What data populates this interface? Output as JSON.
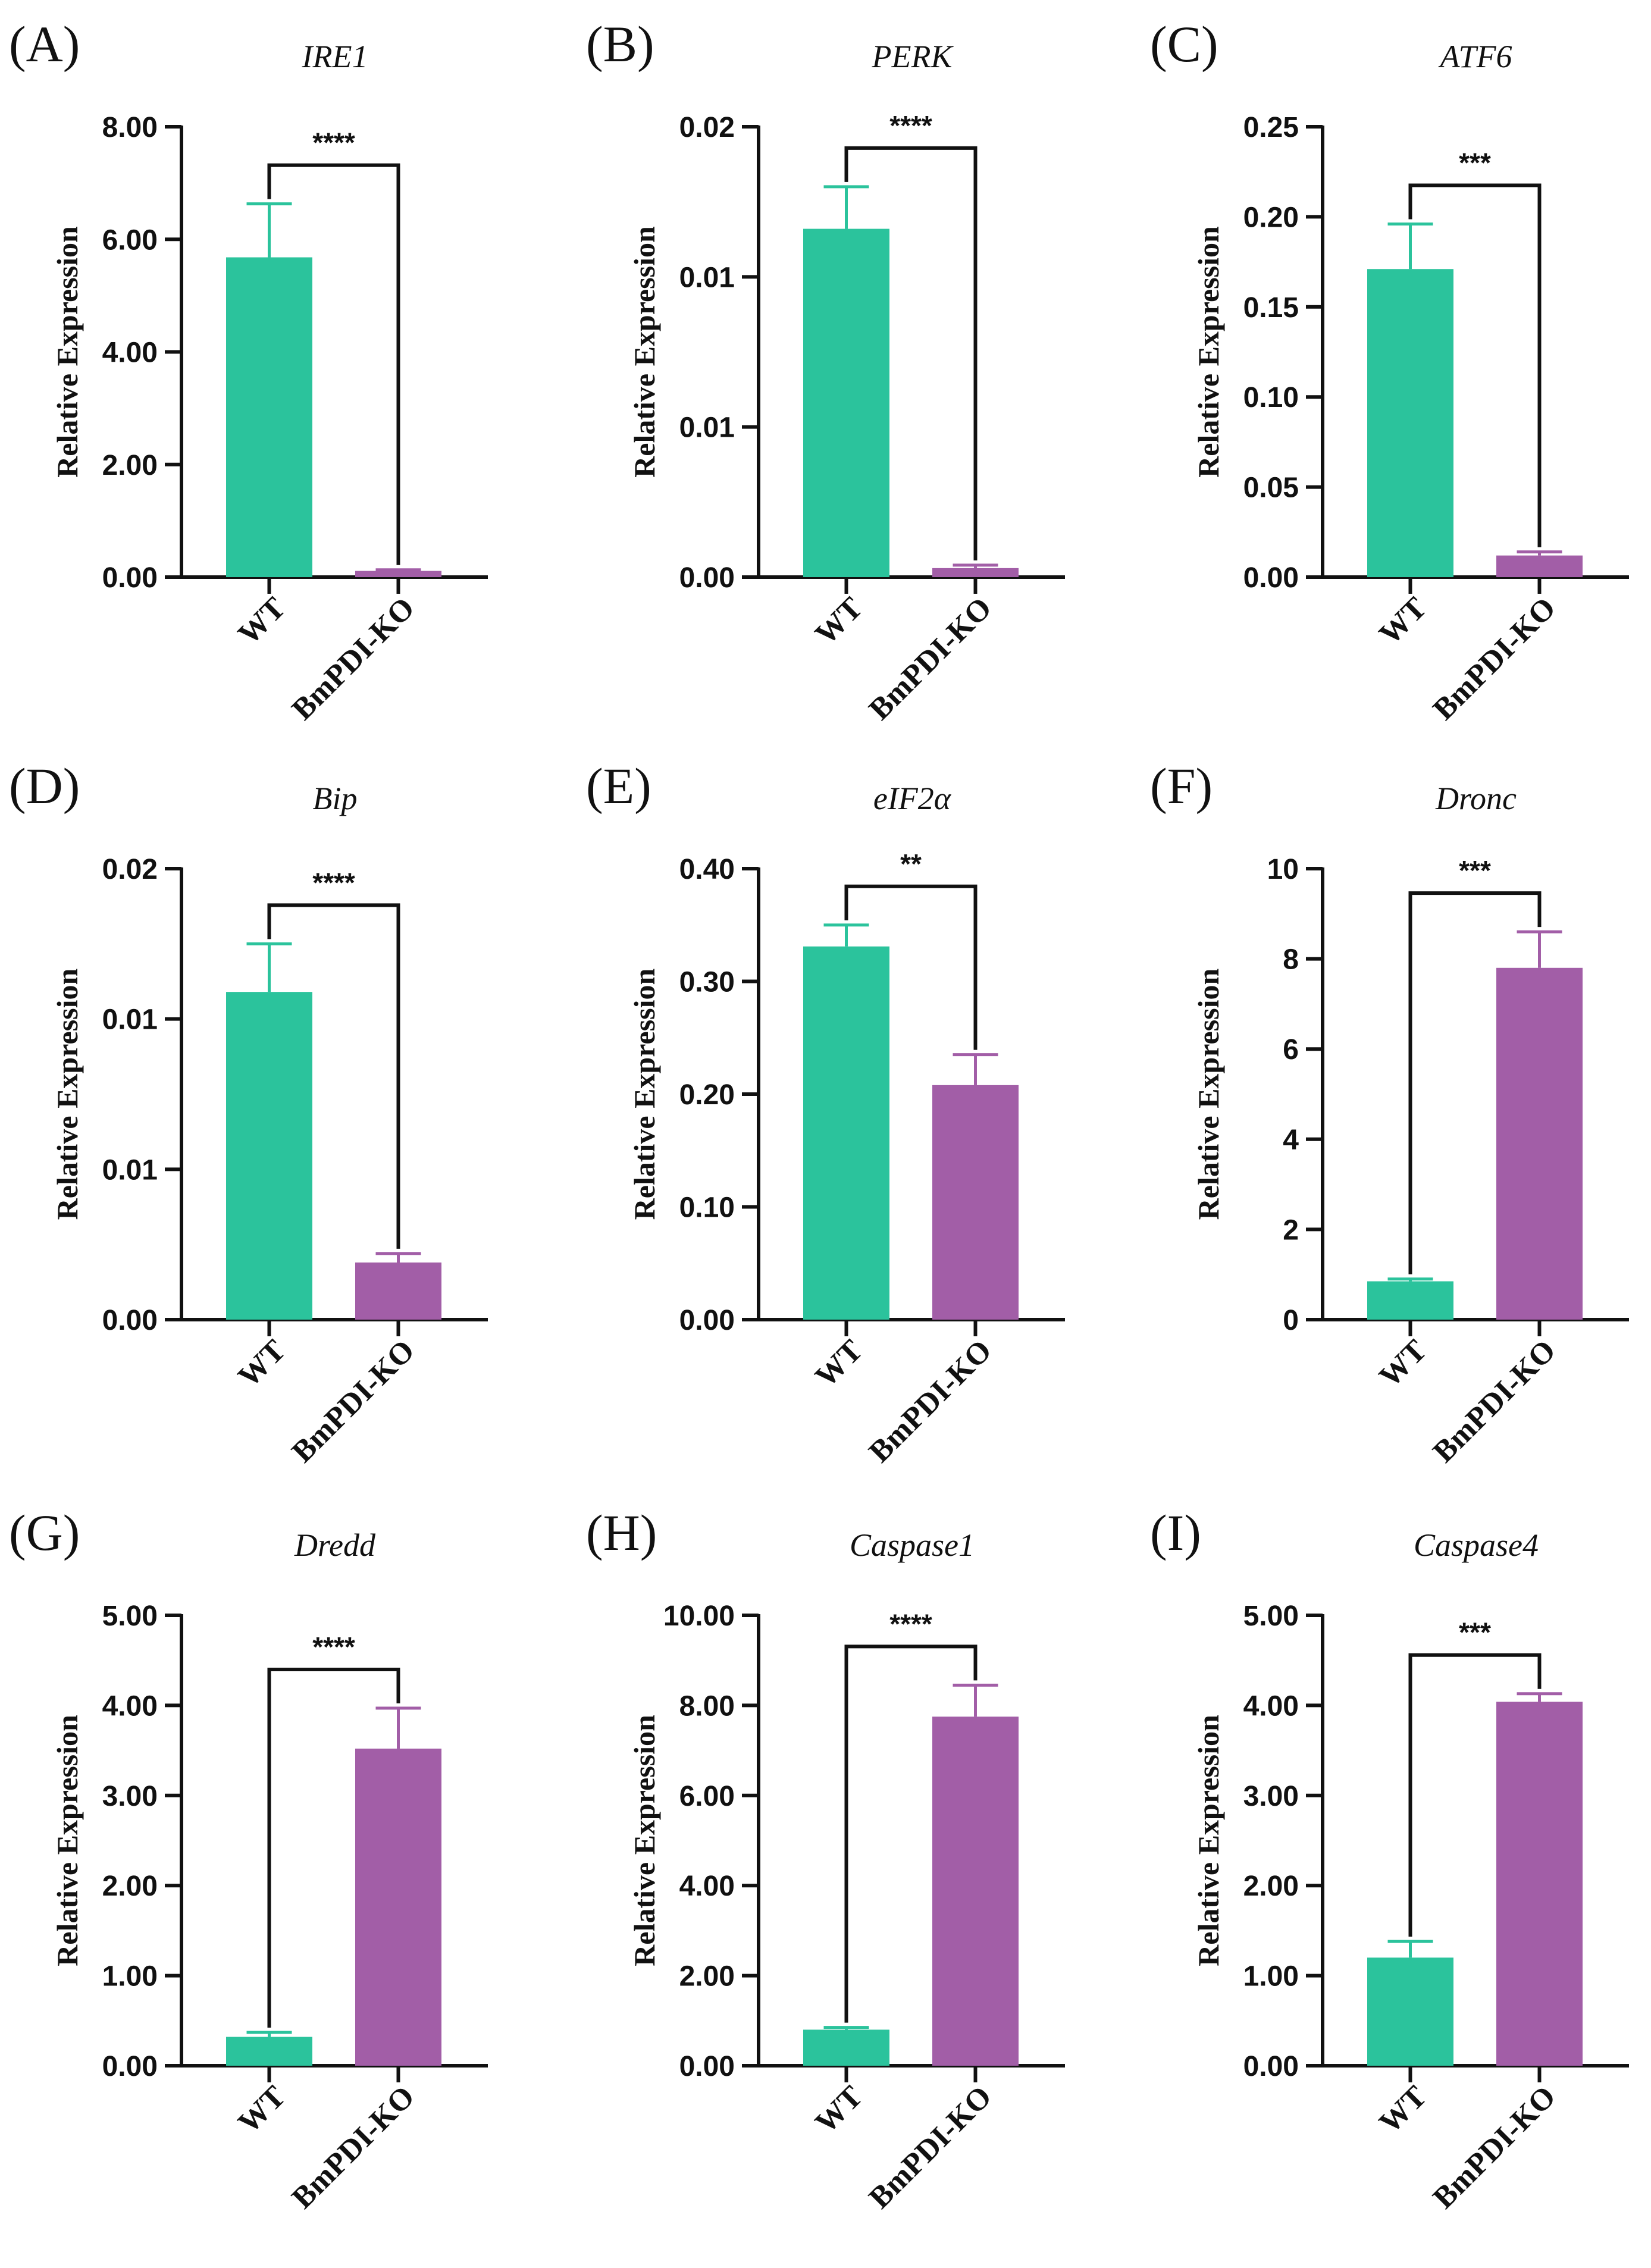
{
  "figure": {
    "colors": {
      "wt": "#2bc39c",
      "ko": "#a25ea7",
      "axis": "#111111",
      "text": "#111111"
    },
    "ylabel": "Relative Expression"
  },
  "chart_data": [
    {
      "panel": "(A)",
      "title": "IRE1",
      "type": "bar",
      "categories": [
        "WT",
        "BmPDI-KO"
      ],
      "values": [
        5.68,
        0.11
      ],
      "errors": [
        0.95,
        0.02
      ],
      "ylim": [
        0,
        8
      ],
      "yticks": [
        "0.00",
        "2.00",
        "4.00",
        "6.00",
        "8.00"
      ],
      "significance": "****",
      "ylabel": "Relative Expression"
    },
    {
      "panel": "(B)",
      "title": "PERK",
      "type": "bar",
      "categories": [
        "WT",
        "BmPDI-KO"
      ],
      "values": [
        0.0116,
        0.0003
      ],
      "errors": [
        0.0014,
        0.0001
      ],
      "ylim": [
        0,
        0.015
      ],
      "yticks": [
        "0.00",
        "0.01",
        "0.01",
        "0.02"
      ],
      "significance": "****",
      "ylabel": "Relative Expression"
    },
    {
      "panel": "(C)",
      "title": "ATF6",
      "type": "bar",
      "categories": [
        "WT",
        "BmPDI-KO"
      ],
      "values": [
        0.171,
        0.012
      ],
      "errors": [
        0.025,
        0.002
      ],
      "ylim": [
        0,
        0.25
      ],
      "yticks": [
        "0.00",
        "0.05",
        "0.10",
        "0.15",
        "0.20",
        "0.25"
      ],
      "significance": "***",
      "ylabel": "Relative Expression"
    },
    {
      "panel": "(D)",
      "title": "Bip",
      "type": "bar",
      "categories": [
        "WT",
        "BmPDI-KO"
      ],
      "values": [
        0.0109,
        0.0019
      ],
      "errors": [
        0.0016,
        0.0003
      ],
      "ylim": [
        0,
        0.015
      ],
      "yticks": [
        "0.00",
        "0.01",
        "0.01",
        "0.02"
      ],
      "significance": "****",
      "ylabel": "Relative Expression"
    },
    {
      "panel": "(E)",
      "title": "eIF2α",
      "type": "bar",
      "categories": [
        "WT",
        "BmPDI-KO"
      ],
      "values": [
        0.331,
        0.208
      ],
      "errors": [
        0.019,
        0.027
      ],
      "ylim": [
        0,
        0.4
      ],
      "yticks": [
        "0.00",
        "0.10",
        "0.20",
        "0.30",
        "0.40"
      ],
      "significance": "**",
      "ylabel": "Relative Expression"
    },
    {
      "panel": "(F)",
      "title": "Dronc",
      "type": "bar",
      "categories": [
        "WT",
        "BmPDI-KO"
      ],
      "values": [
        0.85,
        7.8
      ],
      "errors": [
        0.05,
        0.8
      ],
      "ylim": [
        0,
        10
      ],
      "yticks": [
        "0",
        "2",
        "4",
        "6",
        "8",
        "10"
      ],
      "significance": "***",
      "ylabel": "Relative Expression"
    },
    {
      "panel": "(G)",
      "title": "Dredd",
      "type": "bar",
      "categories": [
        "WT",
        "BmPDI-KO"
      ],
      "values": [
        0.32,
        3.52
      ],
      "errors": [
        0.05,
        0.45
      ],
      "ylim": [
        0,
        5
      ],
      "yticks": [
        "0.00",
        "1.00",
        "2.00",
        "3.00",
        "4.00",
        "5.00"
      ],
      "significance": "****",
      "ylabel": "Relative Expression"
    },
    {
      "panel": "(H)",
      "title": "Caspase1",
      "type": "bar",
      "categories": [
        "WT",
        "BmPDI-KO"
      ],
      "values": [
        0.8,
        7.75
      ],
      "errors": [
        0.05,
        0.7
      ],
      "ylim": [
        0,
        10
      ],
      "yticks": [
        "0.00",
        "2.00",
        "4.00",
        "6.00",
        "8.00",
        "10.00"
      ],
      "significance": "****",
      "ylabel": "Relative Expression"
    },
    {
      "panel": "(I)",
      "title": "Caspase4",
      "type": "bar",
      "categories": [
        "WT",
        "BmPDI-KO"
      ],
      "values": [
        1.2,
        4.04
      ],
      "errors": [
        0.18,
        0.09
      ],
      "ylim": [
        0,
        5
      ],
      "yticks": [
        "0.00",
        "1.00",
        "2.00",
        "3.00",
        "4.00",
        "5.00"
      ],
      "significance": "***",
      "ylabel": "Relative Expression"
    }
  ]
}
